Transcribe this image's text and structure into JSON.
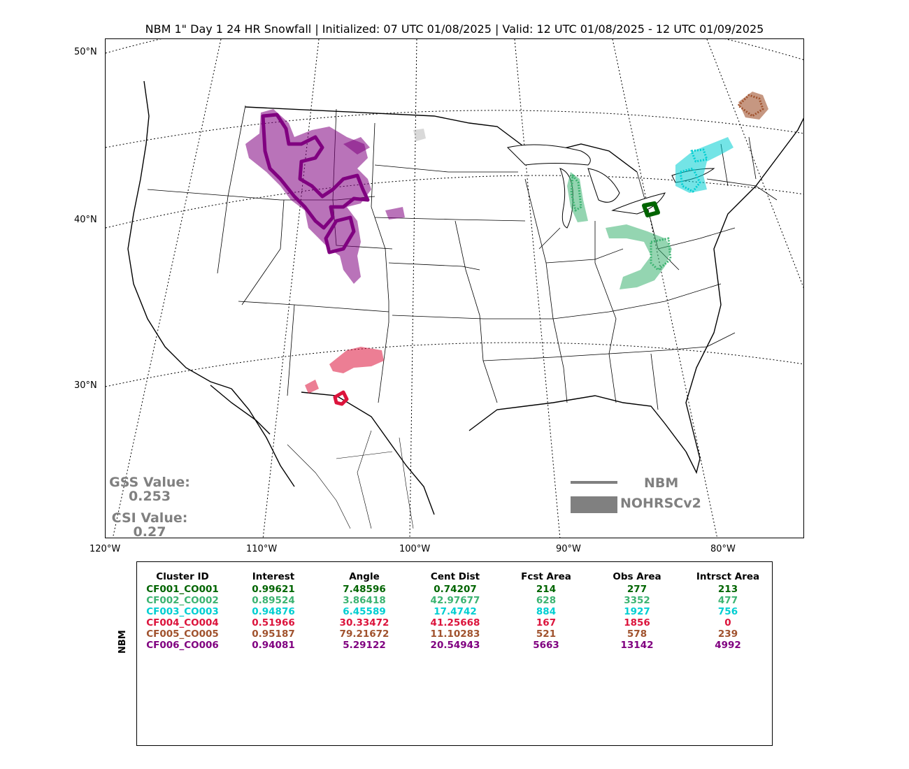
{
  "title": "NBM 1\" Day 1 24 HR Snowfall | Initialized: 07 UTC 01/08/2025 | Valid: 12 UTC 01/08/2025 - 12 UTC 01/09/2025",
  "lat_labels": [
    "50°N",
    "40°N",
    "30°N"
  ],
  "lon_labels": [
    "120°W",
    "110°W",
    "100°W",
    "90°W",
    "80°W"
  ],
  "scores": {
    "gss_label": "GSS Value:",
    "gss_value": "0.253",
    "csi_label": "CSI Value:",
    "csi_value": "0.27"
  },
  "legend": {
    "line_label": "NBM",
    "fill_label": "NOHRSCv2",
    "color": "#808080"
  },
  "colors": {
    "CF001": "#006400",
    "CF002": "#3cb371",
    "CF003": "#00ced1",
    "CF004": "#dc143c",
    "CF005": "#a0522d",
    "CF006": "#800080"
  },
  "table": {
    "side_label": "NBM",
    "headers": [
      "Cluster ID",
      "Interest",
      "Angle",
      "Cent Dist",
      "Fcst Area",
      "Obs Area",
      "Intrsct Area"
    ],
    "rows": [
      {
        "color": "#006400",
        "cells": [
          "CF001_CO001",
          "0.99621",
          "7.48596",
          "0.74207",
          "214",
          "277",
          "213"
        ]
      },
      {
        "color": "#3cb371",
        "cells": [
          "CF002_CO002",
          "0.89524",
          "3.86418",
          "42.97677",
          "628",
          "3352",
          "477"
        ]
      },
      {
        "color": "#00ced1",
        "cells": [
          "CF003_CO003",
          "0.94876",
          "6.45589",
          "17.4742",
          "884",
          "1927",
          "756"
        ]
      },
      {
        "color": "#dc143c",
        "cells": [
          "CF004_CO004",
          "0.51966",
          "30.33472",
          "41.25668",
          "167",
          "1856",
          "0"
        ]
      },
      {
        "color": "#a0522d",
        "cells": [
          "CF005_CO005",
          "0.95187",
          "79.21672",
          "11.10283",
          "521",
          "578",
          "239"
        ]
      },
      {
        "color": "#800080",
        "cells": [
          "CF006_CO006",
          "0.94081",
          "5.29122",
          "20.54943",
          "5663",
          "13142",
          "4992"
        ]
      }
    ]
  }
}
